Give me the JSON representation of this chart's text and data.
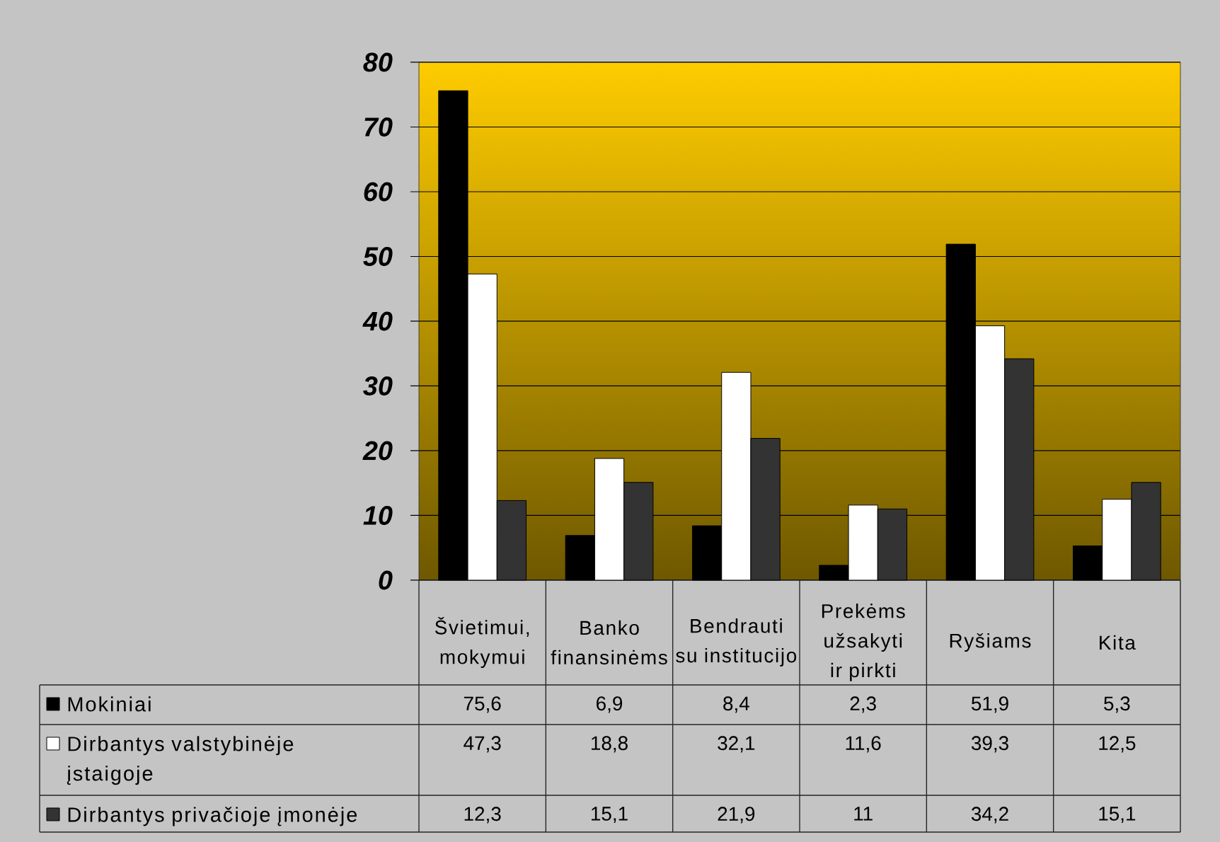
{
  "chart_data": {
    "type": "bar",
    "categories": [
      "Švietimui, mokymui",
      "Banko finansinėms",
      "Bendrauti su institucijo",
      "Prekėms užsakyti ir pirkti",
      "Ryšiams",
      "Kita"
    ],
    "series": [
      {
        "name": "Mokiniai",
        "color": "#000000",
        "values": [
          75.6,
          6.9,
          8.4,
          2.3,
          51.9,
          5.3
        ],
        "value_labels": [
          "75,6",
          "6,9",
          "8,4",
          "2,3",
          "51,9",
          "5,3"
        ]
      },
      {
        "name": "Dirbantys valstybinėje įstaigoje",
        "color": "#ffffff",
        "values": [
          47.3,
          18.8,
          32.1,
          11.6,
          39.3,
          12.5
        ],
        "value_labels": [
          "47,3",
          "18,8",
          "32,1",
          "11,6",
          "39,3",
          "12,5"
        ]
      },
      {
        "name": "Dirbantys privačioje įmonėje",
        "color": "#333333",
        "values": [
          12.3,
          15.1,
          21.9,
          11,
          34.2,
          15.1
        ],
        "value_labels": [
          "12,3",
          "15,1",
          "21,9",
          "11",
          "34,2",
          "15,1"
        ]
      }
    ],
    "ylim": [
      0,
      80
    ],
    "yticks": [
      0,
      10,
      20,
      30,
      40,
      50,
      60,
      70,
      80
    ],
    "grid": "y",
    "legend": "bottom"
  }
}
